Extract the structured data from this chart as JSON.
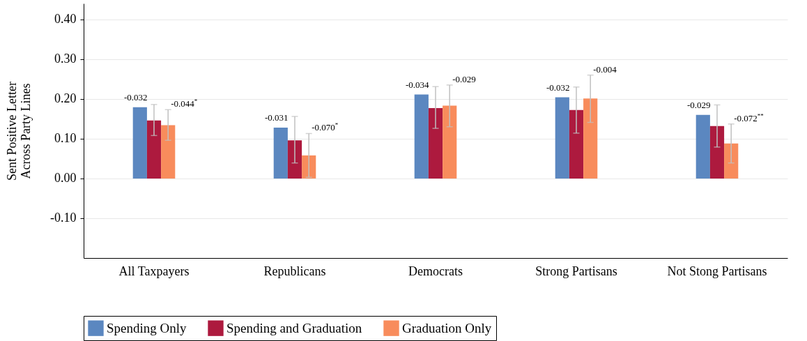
{
  "chart_data": {
    "type": "bar",
    "ylabel": "Sent Positive Letter\nAcross Party Lines",
    "categories": [
      "All Taxpayers",
      "Republicans",
      "Democrats",
      "Strong Partisans",
      "Not Stong Partisans"
    ],
    "series": [
      {
        "name": "Spending Only",
        "color": "#5b87c0",
        "values": [
          0.179,
          0.128,
          0.211,
          0.204,
          0.16
        ]
      },
      {
        "name": "Spending and Graduation",
        "color": "#ad1a3e",
        "values": [
          0.146,
          0.096,
          0.177,
          0.172,
          0.132
        ],
        "errors": [
          [
            0.108,
            0.186
          ],
          [
            0.039,
            0.156
          ],
          [
            0.126,
            0.231
          ],
          [
            0.114,
            0.23
          ],
          [
            0.079,
            0.185
          ]
        ]
      },
      {
        "name": "Graduation Only",
        "color": "#f88c5c",
        "values": [
          0.134,
          0.058,
          0.183,
          0.201,
          0.088
        ],
        "errors": [
          [
            0.096,
            0.173
          ],
          [
            0.003,
            0.113
          ],
          [
            0.13,
            0.235
          ],
          [
            0.141,
            0.26
          ],
          [
            0.039,
            0.137
          ]
        ]
      }
    ],
    "ylim": [
      -0.2,
      0.44
    ],
    "yticks": [
      {
        "value": -0.1,
        "label": "-0.10"
      },
      {
        "value": 0,
        "label": "0.00"
      },
      {
        "value": 0.1,
        "label": "0.10"
      },
      {
        "value": 0.2,
        "label": "0.20"
      },
      {
        "value": 0.3,
        "label": "0.30"
      },
      {
        "value": 0.4,
        "label": "0.40"
      }
    ],
    "grid": "y",
    "legend": "bottom",
    "annotations": [
      "-0.032",
      "-0.044$^{*}$",
      "-0.031",
      "-0.070$^{*}$",
      "-0.034",
      "-0.029",
      "-0.032",
      "-0.004",
      "-0.029",
      "-0.072$^{**}$"
    ]
  }
}
